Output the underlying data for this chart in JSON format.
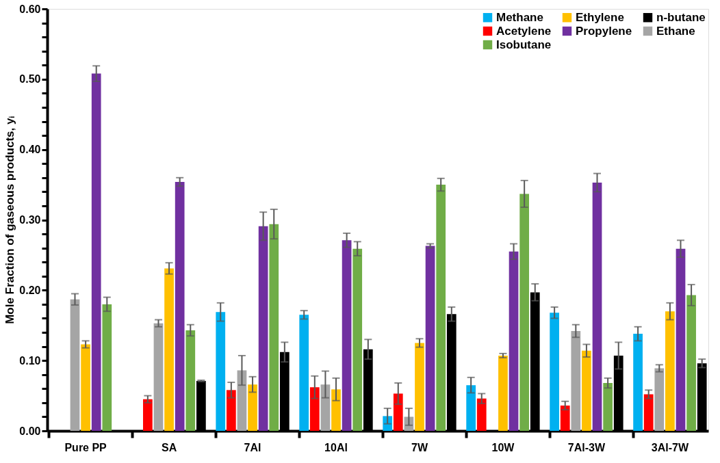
{
  "chart_data": {
    "type": "bar",
    "ylabel": "Mole Fraction of gaseous products, yᵢ",
    "categories": [
      "Pure PP",
      "SA",
      "7Al",
      "10Al",
      "7W",
      "10W",
      "7Al-3W",
      "3Al-7W"
    ],
    "series": [
      {
        "name": "Methane",
        "color": "#00b0f0",
        "values": [
          null,
          null,
          0.169,
          0.165,
          0.021,
          0.065,
          0.168,
          0.138
        ],
        "errors": [
          null,
          null,
          0.013,
          0.006,
          0.011,
          0.011,
          0.008,
          0.01
        ]
      },
      {
        "name": "Acetylene",
        "color": "#ff0000",
        "values": [
          null,
          0.045,
          0.058,
          0.062,
          0.053,
          0.046,
          0.036,
          0.052
        ],
        "errors": [
          null,
          0.005,
          0.011,
          0.016,
          0.015,
          0.007,
          0.006,
          0.006
        ]
      },
      {
        "name": "Ethane",
        "color": "#a5a5a5",
        "values": [
          0.187,
          0.153,
          0.086,
          0.066,
          0.02,
          null,
          0.142,
          0.089
        ],
        "errors": [
          0.008,
          0.005,
          0.021,
          0.019,
          0.012,
          null,
          0.009,
          0.005
        ]
      },
      {
        "name": "Ethylene",
        "color": "#ffc000",
        "values": [
          0.123,
          0.231,
          0.066,
          0.059,
          0.125,
          0.107,
          0.114,
          0.17
        ],
        "errors": [
          0.005,
          0.008,
          0.011,
          0.016,
          0.006,
          0.003,
          0.009,
          0.012
        ]
      },
      {
        "name": "Propylene",
        "color": "#7030a0",
        "values": [
          0.508,
          0.354,
          0.291,
          0.271,
          0.263,
          0.255,
          0.353,
          0.259
        ],
        "errors": [
          0.011,
          0.006,
          0.02,
          0.01,
          0.003,
          0.011,
          0.013,
          0.012
        ]
      },
      {
        "name": "Isobutane",
        "color": "#70ad47",
        "values": [
          0.18,
          0.143,
          0.294,
          0.259,
          0.35,
          0.337,
          0.068,
          0.193
        ],
        "errors": [
          0.01,
          0.008,
          0.021,
          0.01,
          0.009,
          0.019,
          0.007,
          0.015
        ]
      },
      {
        "name": "n-butane",
        "color": "#000000",
        "values": [
          null,
          0.071,
          0.112,
          0.116,
          0.166,
          0.197,
          0.107,
          0.096
        ],
        "errors": [
          null,
          0.001,
          0.014,
          0.014,
          0.01,
          0.012,
          0.019,
          0.006
        ]
      }
    ],
    "ylim": [
      0,
      0.6
    ],
    "yticks": [
      {
        "value": 0,
        "label": "0.00"
      },
      {
        "value": 0.02,
        "label": null
      },
      {
        "value": 0.04,
        "label": null
      },
      {
        "value": 0.06,
        "label": null
      },
      {
        "value": 0.08,
        "label": null
      },
      {
        "value": 0.1,
        "label": "0.10"
      },
      {
        "value": 0.12,
        "label": null
      },
      {
        "value": 0.14,
        "label": null
      },
      {
        "value": 0.16,
        "label": null
      },
      {
        "value": 0.18,
        "label": null
      },
      {
        "value": 0.2,
        "label": "0.20"
      },
      {
        "value": 0.22,
        "label": null
      },
      {
        "value": 0.24,
        "label": null
      },
      {
        "value": 0.26,
        "label": null
      },
      {
        "value": 0.28,
        "label": null
      },
      {
        "value": 0.3,
        "label": "0.30"
      },
      {
        "value": 0.32,
        "label": null
      },
      {
        "value": 0.34,
        "label": null
      },
      {
        "value": 0.36,
        "label": null
      },
      {
        "value": 0.38,
        "label": null
      },
      {
        "value": 0.4,
        "label": "0.40"
      },
      {
        "value": 0.42,
        "label": null
      },
      {
        "value": 0.44,
        "label": null
      },
      {
        "value": 0.46,
        "label": null
      },
      {
        "value": 0.48,
        "label": null
      },
      {
        "value": 0.5,
        "label": "0.50"
      },
      {
        "value": 0.52,
        "label": null
      },
      {
        "value": 0.54,
        "label": null
      },
      {
        "value": 0.56,
        "label": null
      },
      {
        "value": 0.58,
        "label": null
      },
      {
        "value": 0.6,
        "label": "0.60"
      }
    ],
    "grid": false,
    "legend": "top right"
  }
}
